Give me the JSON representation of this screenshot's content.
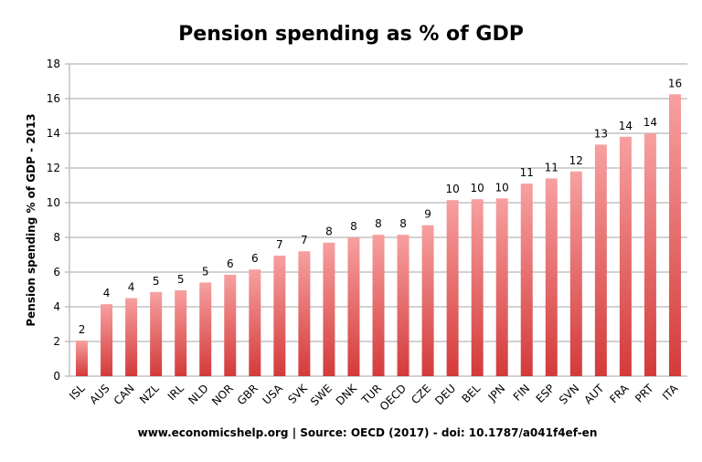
{
  "chart_data": {
    "type": "bar",
    "title": "Pension spending as % of GDP",
    "ylabel": "Pension spending % of GDP - 2013",
    "xlabel": "",
    "source": "www.economicshelp.org | Source: OECD (2017) - doi: 10.1787/a041f4ef-en",
    "ylim": [
      0,
      18
    ],
    "yticks": [
      0,
      2,
      4,
      6,
      8,
      10,
      12,
      14,
      16,
      18
    ],
    "grid": true,
    "legend": "none",
    "bar_color_top": "#f7a0a0",
    "bar_color_bottom": "#d43a3a",
    "categories": [
      "ISL",
      "AUS",
      "CAN",
      "NZL",
      "IRL",
      "NLD",
      "NOR",
      "GBR",
      "USA",
      "SVK",
      "SWE",
      "DNK",
      "TUR",
      "OECD",
      "CZE",
      "DEU",
      "BEL",
      "JPN",
      "FIN",
      "ESP",
      "SVN",
      "AUT",
      "FRA",
      "PRT",
      "ITA"
    ],
    "values": [
      2.05,
      4.15,
      4.5,
      4.85,
      4.95,
      5.4,
      5.85,
      6.15,
      6.95,
      7.2,
      7.7,
      8.0,
      8.15,
      8.15,
      8.7,
      10.15,
      10.2,
      10.25,
      11.1,
      11.4,
      11.8,
      13.35,
      13.8,
      14.0,
      16.25
    ],
    "data_labels": [
      "2",
      "4",
      "4",
      "5",
      "5",
      "5",
      "6",
      "6",
      "7",
      "7",
      "8",
      "8",
      "8",
      "8",
      "9",
      "10",
      "10",
      "10",
      "11",
      "11",
      "12",
      "13",
      "14",
      "14",
      "16"
    ]
  }
}
